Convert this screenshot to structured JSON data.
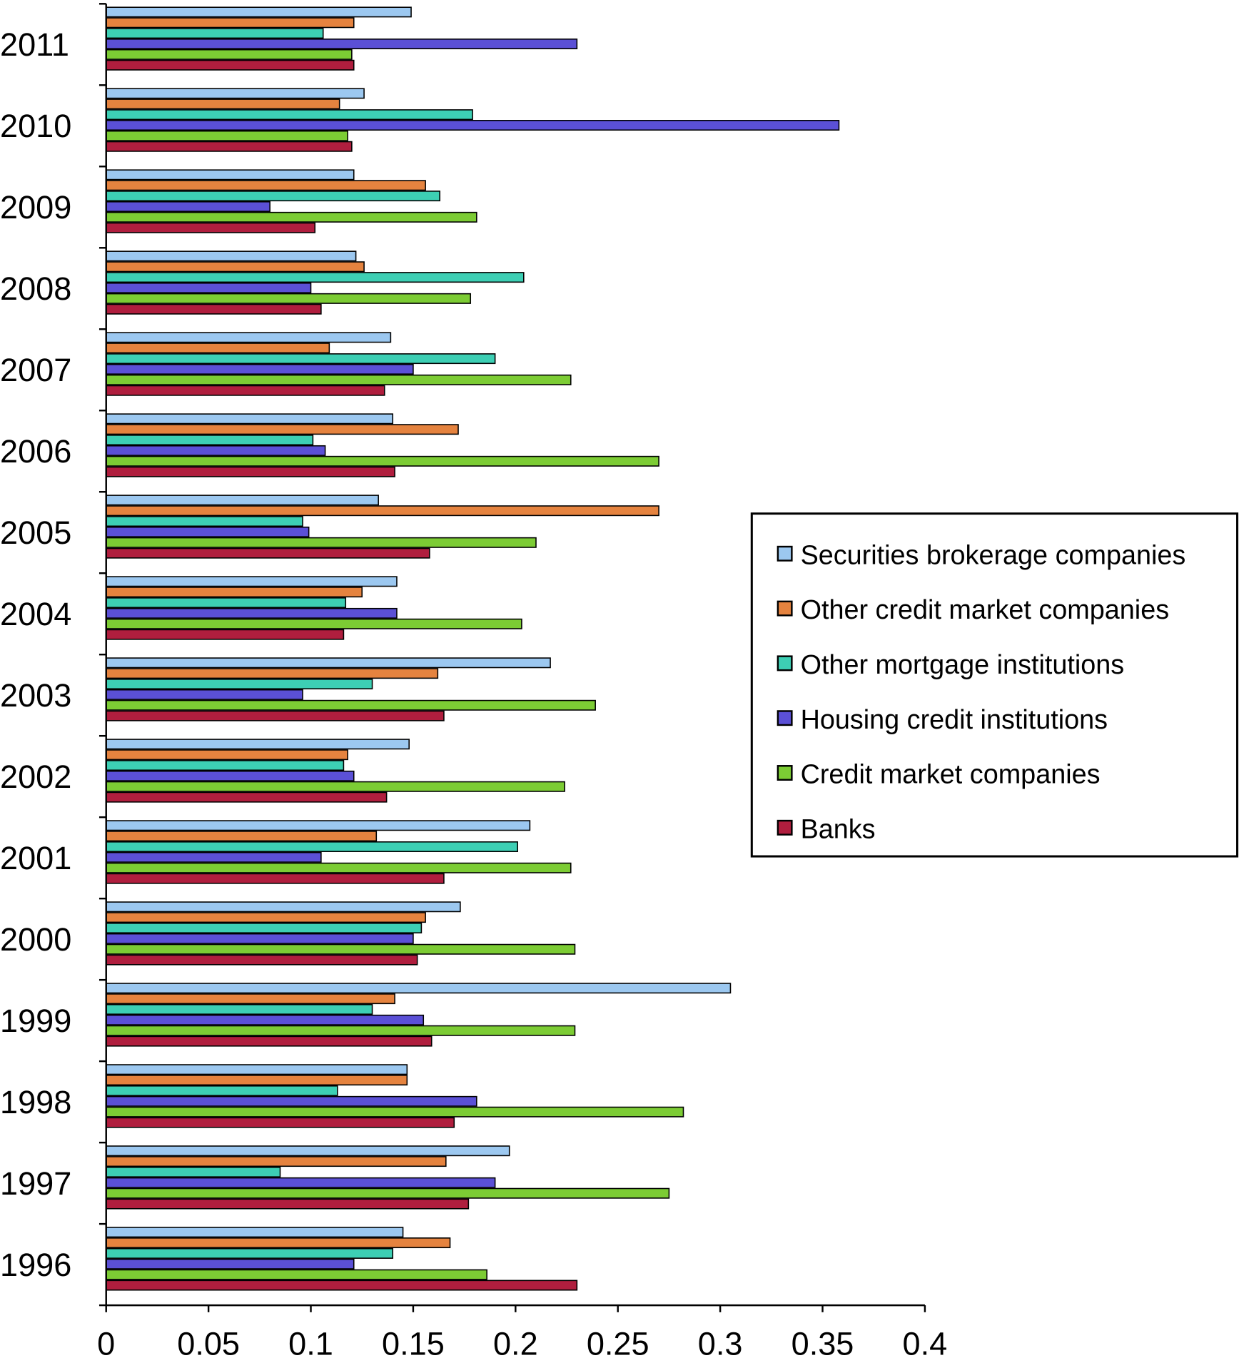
{
  "chart_data": {
    "type": "bar",
    "orientation": "horizontal",
    "title": "",
    "xlabel": "",
    "ylabel": "",
    "xlim": [
      0,
      0.4
    ],
    "x_ticks": [
      "0",
      "0.05",
      "0.1",
      "0.15",
      "0.2",
      "0.25",
      "0.3",
      "0.35",
      "0.4"
    ],
    "grid": false,
    "legend_position": "right",
    "categories": [
      "1996",
      "1997",
      "1998",
      "1999",
      "2000",
      "2001",
      "2002",
      "2003",
      "2004",
      "2005",
      "2006",
      "2007",
      "2008",
      "2009",
      "2010",
      "2011"
    ],
    "series": [
      {
        "name": "Securities brokerage companies",
        "color": "#9cc8f0",
        "values": [
          0.145,
          0.197,
          0.147,
          0.305,
          0.173,
          0.207,
          0.148,
          0.217,
          0.142,
          0.133,
          0.14,
          0.139,
          0.122,
          0.121,
          0.126,
          0.149
        ]
      },
      {
        "name": "Other credit market companies",
        "color": "#e5833f",
        "values": [
          0.168,
          0.166,
          0.147,
          0.141,
          0.156,
          0.132,
          0.118,
          0.162,
          0.125,
          0.27,
          0.172,
          0.109,
          0.126,
          0.156,
          0.114,
          0.121
        ]
      },
      {
        "name": "Other mortgage institutions",
        "color": "#3dcfb4",
        "values": [
          0.14,
          0.085,
          0.113,
          0.13,
          0.154,
          0.201,
          0.116,
          0.13,
          0.117,
          0.096,
          0.101,
          0.19,
          0.204,
          0.163,
          0.179,
          0.106
        ]
      },
      {
        "name": "Housing credit institutions",
        "color": "#5b50d6",
        "values": [
          0.121,
          0.19,
          0.181,
          0.155,
          0.15,
          0.105,
          0.121,
          0.096,
          0.142,
          0.099,
          0.107,
          0.15,
          0.1,
          0.08,
          0.358,
          0.23
        ]
      },
      {
        "name": "Credit market companies",
        "color": "#7ccc34",
        "values": [
          0.186,
          0.275,
          0.282,
          0.229,
          0.229,
          0.227,
          0.224,
          0.239,
          0.203,
          0.21,
          0.27,
          0.227,
          0.178,
          0.181,
          0.118,
          0.12
        ]
      },
      {
        "name": "Banks",
        "color": "#b01e3e",
        "values": [
          0.23,
          0.177,
          0.17,
          0.159,
          0.152,
          0.165,
          0.137,
          0.165,
          0.116,
          0.158,
          0.141,
          0.136,
          0.105,
          0.102,
          0.12,
          0.121
        ]
      }
    ]
  }
}
